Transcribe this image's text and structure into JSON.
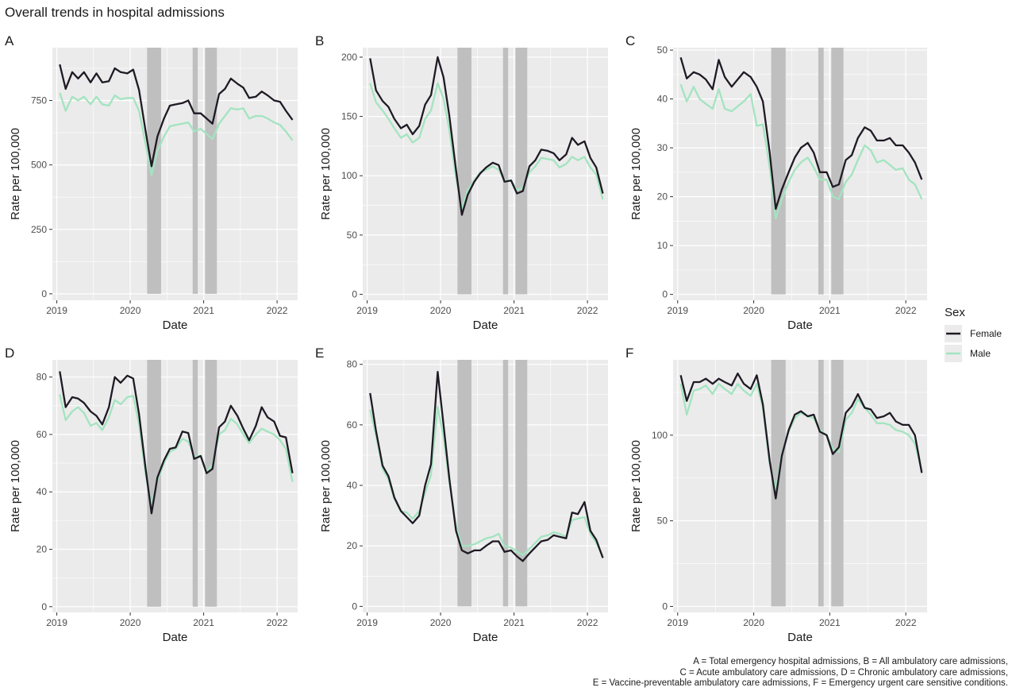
{
  "title": "Overall trends in hospital admissions",
  "legend": {
    "title": "Sex",
    "entries": [
      {
        "name": "Female",
        "color": "#1f1a24"
      },
      {
        "name": "Male",
        "color": "#a3e4c0"
      }
    ]
  },
  "caption": [
    "A = Total emergency hospital admissions, B = All ambulatory care admissions,",
    "C = Acute ambulatory care admissions, D = Chronic ambulatory care admissions,",
    "E = Vaccine-preventable ambulatory care admissions, F = Emergency urgent care sensitive conditions."
  ],
  "colors": {
    "panel_bg": "#ebebeb",
    "grid": "#ffffff",
    "shade": "#bfbfbf",
    "female": "#1f1a24",
    "male": "#a3e4c0"
  },
  "shaded_periods": [
    [
      2020.23,
      2020.42
    ],
    [
      2020.85,
      2020.92
    ],
    [
      2021.02,
      2021.18
    ]
  ],
  "chart_data": [
    {
      "type": "line",
      "panel": "A",
      "xlabel": "Date",
      "ylabel": "Rate per 100,000",
      "xlim": [
        2018.94,
        2022.28
      ],
      "ylim": [
        -25,
        955
      ],
      "xticks": [
        2019,
        2020,
        2021,
        2022
      ],
      "xtick_labels": [
        "2019",
        "2020",
        "2021",
        "2022"
      ],
      "yticks": [
        0,
        250,
        500,
        750
      ],
      "ytick_labels": [
        "0",
        "250",
        "500",
        "750"
      ],
      "x": [
        2019.04,
        2019.12,
        2019.21,
        2019.29,
        2019.37,
        2019.46,
        2019.54,
        2019.62,
        2019.71,
        2019.79,
        2019.87,
        2019.96,
        2020.04,
        2020.12,
        2020.21,
        2020.29,
        2020.37,
        2020.46,
        2020.54,
        2020.62,
        2020.71,
        2020.79,
        2020.87,
        2020.96,
        2021.04,
        2021.12,
        2021.21,
        2021.29,
        2021.37,
        2021.46,
        2021.54,
        2021.62,
        2021.71,
        2021.79,
        2021.87,
        2021.96,
        2022.04,
        2022.12,
        2022.21
      ],
      "series": [
        {
          "name": "Female",
          "values": [
            890,
            795,
            860,
            835,
            860,
            820,
            855,
            820,
            825,
            875,
            860,
            855,
            870,
            790,
            630,
            495,
            610,
            680,
            730,
            735,
            740,
            750,
            700,
            700,
            680,
            660,
            775,
            795,
            835,
            815,
            800,
            760,
            765,
            785,
            770,
            750,
            745,
            710,
            675
          ]
        },
        {
          "name": "Male",
          "values": [
            780,
            710,
            765,
            750,
            765,
            735,
            765,
            735,
            730,
            770,
            755,
            760,
            760,
            710,
            580,
            460,
            555,
            610,
            650,
            655,
            660,
            665,
            630,
            640,
            620,
            600,
            660,
            690,
            720,
            715,
            720,
            680,
            690,
            690,
            680,
            665,
            655,
            630,
            595
          ]
        }
      ]
    },
    {
      "type": "line",
      "panel": "B",
      "xlabel": "Date",
      "ylabel": "Rate per 100,000",
      "xlim": [
        2018.94,
        2022.28
      ],
      "ylim": [
        -5,
        208
      ],
      "xticks": [
        2019,
        2020,
        2021,
        2022
      ],
      "xtick_labels": [
        "2019",
        "2020",
        "2021",
        "2022"
      ],
      "yticks": [
        0,
        50,
        100,
        150,
        200
      ],
      "ytick_labels": [
        "0",
        "50",
        "100",
        "150",
        "200"
      ],
      "x": [
        2019.04,
        2019.12,
        2019.21,
        2019.29,
        2019.37,
        2019.46,
        2019.54,
        2019.62,
        2019.71,
        2019.79,
        2019.87,
        2019.96,
        2020.04,
        2020.12,
        2020.21,
        2020.29,
        2020.37,
        2020.46,
        2020.54,
        2020.62,
        2020.71,
        2020.79,
        2020.87,
        2020.96,
        2021.04,
        2021.12,
        2021.21,
        2021.29,
        2021.37,
        2021.46,
        2021.54,
        2021.62,
        2021.71,
        2021.79,
        2021.87,
        2021.96,
        2022.04,
        2022.12,
        2022.21
      ],
      "series": [
        {
          "name": "Female",
          "values": [
            199,
            172,
            163,
            158,
            148,
            140,
            143,
            135,
            142,
            160,
            168,
            200,
            183,
            150,
            105,
            67,
            84,
            95,
            102,
            107,
            111,
            109,
            95,
            96,
            85,
            87,
            108,
            113,
            122,
            121,
            119,
            113,
            118,
            132,
            126,
            129,
            115,
            107,
            85
          ]
        },
        {
          "name": "Male",
          "values": [
            178,
            162,
            155,
            148,
            140,
            132,
            135,
            128,
            132,
            148,
            155,
            178,
            165,
            138,
            98,
            72,
            88,
            96,
            103,
            105,
            108,
            105,
            96,
            96,
            88,
            90,
            103,
            108,
            115,
            114,
            113,
            107,
            110,
            116,
            113,
            116,
            107,
            101,
            80
          ]
        }
      ]
    },
    {
      "type": "line",
      "panel": "C",
      "xlabel": "Date",
      "ylabel": "Rate per 100,000",
      "xlim": [
        2018.94,
        2022.28
      ],
      "ylim": [
        -1.2,
        50.5
      ],
      "xticks": [
        2019,
        2020,
        2021,
        2022
      ],
      "xtick_labels": [
        "2019",
        "2020",
        "2021",
        "2022"
      ],
      "yticks": [
        0,
        10,
        20,
        30,
        40,
        50
      ],
      "ytick_labels": [
        "0",
        "10",
        "20",
        "30",
        "40",
        "50"
      ],
      "x": [
        2019.04,
        2019.12,
        2019.21,
        2019.29,
        2019.37,
        2019.46,
        2019.54,
        2019.62,
        2019.71,
        2019.79,
        2019.87,
        2019.96,
        2020.04,
        2020.12,
        2020.21,
        2020.29,
        2020.37,
        2020.46,
        2020.54,
        2020.62,
        2020.71,
        2020.79,
        2020.87,
        2020.96,
        2021.04,
        2021.12,
        2021.21,
        2021.29,
        2021.37,
        2021.46,
        2021.54,
        2021.62,
        2021.71,
        2021.79,
        2021.87,
        2021.96,
        2022.04,
        2022.12,
        2022.21
      ],
      "series": [
        {
          "name": "Female",
          "values": [
            48.5,
            44.2,
            45.5,
            45,
            44,
            42,
            48,
            44.5,
            42.5,
            44,
            45.5,
            44.5,
            42.5,
            39.5,
            29,
            17.5,
            21.5,
            25,
            28,
            30,
            31,
            29,
            25,
            25,
            22,
            22.5,
            27.5,
            28.5,
            32,
            34.2,
            33.5,
            31.5,
            31.5,
            32,
            30.5,
            30.5,
            29,
            27,
            23.5
          ]
        },
        {
          "name": "Male",
          "values": [
            43,
            39.5,
            42.5,
            40,
            39,
            38,
            42,
            38,
            37.5,
            38.5,
            39.5,
            41,
            34.5,
            34.8,
            26,
            15.5,
            19.5,
            23,
            25.5,
            27,
            28,
            26,
            23.5,
            23.5,
            20,
            19.5,
            23,
            24.5,
            27.5,
            30.5,
            29.5,
            27,
            27.5,
            26.5,
            25.5,
            25.8,
            23.5,
            22.5,
            19.5
          ]
        }
      ]
    },
    {
      "type": "line",
      "panel": "D",
      "xlabel": "Date",
      "ylabel": "Rate per 100,000",
      "xlim": [
        2018.94,
        2022.28
      ],
      "ylim": [
        -2,
        86
      ],
      "xticks": [
        2019,
        2020,
        2021,
        2022
      ],
      "xtick_labels": [
        "2019",
        "2020",
        "2021",
        "2022"
      ],
      "yticks": [
        0,
        20,
        40,
        60,
        80
      ],
      "ytick_labels": [
        "0",
        "20",
        "40",
        "60",
        "80"
      ],
      "x": [
        2019.04,
        2019.12,
        2019.21,
        2019.29,
        2019.37,
        2019.46,
        2019.54,
        2019.62,
        2019.71,
        2019.79,
        2019.87,
        2019.96,
        2020.04,
        2020.12,
        2020.21,
        2020.29,
        2020.37,
        2020.46,
        2020.54,
        2020.62,
        2020.71,
        2020.79,
        2020.87,
        2020.96,
        2021.04,
        2021.12,
        2021.21,
        2021.29,
        2021.37,
        2021.46,
        2021.54,
        2021.62,
        2021.71,
        2021.79,
        2021.87,
        2021.96,
        2022.04,
        2022.12,
        2022.21
      ],
      "series": [
        {
          "name": "Female",
          "values": [
            82,
            69.5,
            73,
            72.5,
            71,
            68,
            66.5,
            63.5,
            69.5,
            80,
            78,
            80.5,
            79.5,
            67,
            48,
            32.5,
            45,
            51,
            55,
            55.5,
            61,
            60.5,
            51.5,
            52.5,
            46.5,
            48,
            62.5,
            64.5,
            70,
            66.5,
            62,
            58,
            63,
            69.5,
            66,
            64.5,
            59.5,
            59,
            46.5
          ]
        },
        {
          "name": "Male",
          "values": [
            74,
            65,
            68,
            69.5,
            67.5,
            63,
            64,
            61.5,
            66,
            72,
            70.5,
            73,
            73.5,
            63.5,
            46,
            35,
            44,
            50,
            54,
            55,
            58.5,
            57.5,
            52.5,
            52.5,
            47,
            49.5,
            60,
            61.5,
            65.5,
            63.5,
            60,
            57,
            60,
            62,
            61,
            60,
            58,
            55,
            43.5
          ]
        }
      ]
    },
    {
      "type": "line",
      "panel": "E",
      "xlabel": "Date",
      "ylabel": "Rate per 100,000",
      "xlim": [
        2018.94,
        2022.28
      ],
      "ylim": [
        -2,
        81.5
      ],
      "xticks": [
        2019,
        2020,
        2021,
        2022
      ],
      "xtick_labels": [
        "2019",
        "2020",
        "2021",
        "2022"
      ],
      "yticks": [
        0,
        20,
        40,
        60,
        80
      ],
      "ytick_labels": [
        "0",
        "20",
        "40",
        "60",
        "80"
      ],
      "x": [
        2019.04,
        2019.12,
        2019.21,
        2019.29,
        2019.37,
        2019.46,
        2019.54,
        2019.62,
        2019.71,
        2019.79,
        2019.87,
        2019.96,
        2020.04,
        2020.12,
        2020.21,
        2020.29,
        2020.37,
        2020.46,
        2020.54,
        2020.62,
        2020.71,
        2020.79,
        2020.87,
        2020.96,
        2021.04,
        2021.12,
        2021.21,
        2021.29,
        2021.37,
        2021.46,
        2021.54,
        2021.62,
        2021.71,
        2021.79,
        2021.87,
        2021.96,
        2022.04,
        2022.12,
        2022.21
      ],
      "series": [
        {
          "name": "Female",
          "values": [
            70.5,
            58,
            46.5,
            43,
            36,
            31.5,
            29.5,
            27.5,
            30,
            40,
            47,
            77.5,
            60,
            42,
            25,
            18.5,
            17.5,
            18.5,
            18.5,
            20,
            21.5,
            21.5,
            18,
            18.5,
            16.5,
            15,
            17.5,
            19.5,
            21.5,
            22,
            23.5,
            23,
            22.5,
            31,
            30.5,
            34.5,
            25,
            22,
            16
          ]
        },
        {
          "name": "Male",
          "values": [
            65,
            56.5,
            45.5,
            42,
            35.5,
            31.5,
            31,
            29,
            31.5,
            37.5,
            43.5,
            66,
            56,
            41,
            26.5,
            20,
            20,
            20.5,
            21.5,
            22.5,
            23,
            24,
            20,
            19.5,
            18,
            17,
            19,
            21,
            23,
            23.5,
            24.5,
            24,
            23,
            28.5,
            29,
            29.5,
            24,
            21,
            16.5
          ]
        }
      ]
    },
    {
      "type": "line",
      "panel": "F",
      "xlabel": "Date",
      "ylabel": "Rate per 100,000",
      "xlim": [
        2018.94,
        2022.28
      ],
      "ylim": [
        -3.5,
        144
      ],
      "xticks": [
        2019,
        2020,
        2021,
        2022
      ],
      "xtick_labels": [
        "2019",
        "2020",
        "2021",
        "2022"
      ],
      "yticks": [
        0,
        50,
        100
      ],
      "ytick_labels": [
        "0",
        "50",
        "100"
      ],
      "x": [
        2019.04,
        2019.12,
        2019.21,
        2019.29,
        2019.37,
        2019.46,
        2019.54,
        2019.62,
        2019.71,
        2019.79,
        2019.87,
        2019.96,
        2020.04,
        2020.12,
        2020.21,
        2020.29,
        2020.37,
        2020.46,
        2020.54,
        2020.62,
        2020.71,
        2020.79,
        2020.87,
        2020.96,
        2021.04,
        2021.12,
        2021.21,
        2021.29,
        2021.37,
        2021.46,
        2021.54,
        2021.62,
        2021.71,
        2021.79,
        2021.87,
        2021.96,
        2022.04,
        2022.12,
        2022.21
      ],
      "series": [
        {
          "name": "Female",
          "values": [
            135,
            120,
            131,
            131,
            133,
            130,
            133,
            131,
            129,
            136,
            130,
            127,
            135,
            118,
            85,
            63,
            88,
            103,
            112,
            114,
            111,
            112,
            102,
            100,
            89,
            93,
            113,
            117,
            124,
            116,
            115,
            110,
            111,
            113,
            108,
            106,
            106,
            100,
            78
          ]
        },
        {
          "name": "Male",
          "values": [
            130,
            112,
            126,
            127,
            129,
            124,
            130,
            127,
            124,
            130,
            126,
            123,
            130,
            116,
            83,
            68,
            89,
            102,
            110,
            113,
            111,
            110,
            103,
            100,
            92,
            90,
            109,
            113,
            121,
            116,
            112,
            107,
            107,
            106,
            103,
            102,
            100,
            95,
            79
          ]
        }
      ]
    }
  ]
}
